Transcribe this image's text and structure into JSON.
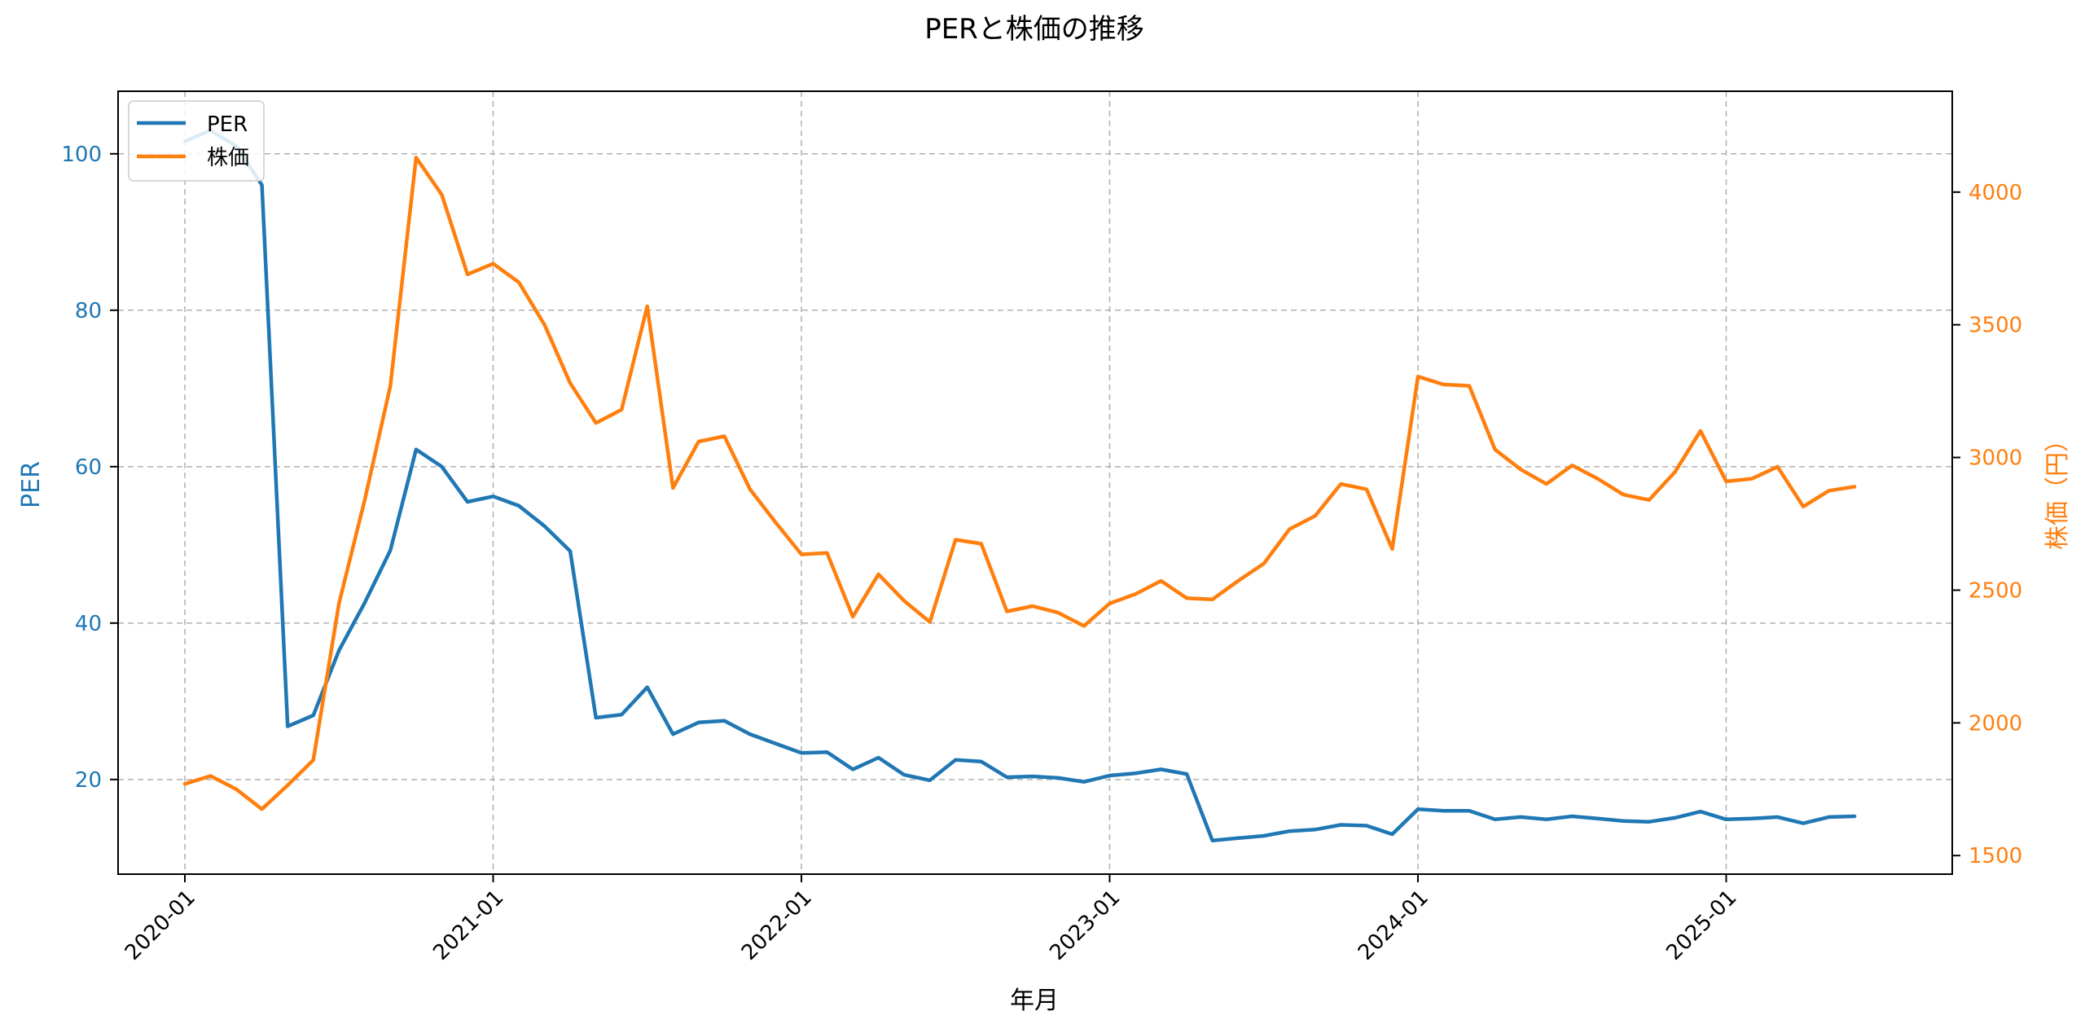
{
  "chart_data": {
    "type": "line",
    "title": "PERと株価の推移",
    "xlabel": "年月",
    "ylabel_left": "PER",
    "ylabel_right": "株価（円）",
    "x_ticks": [
      "2020-01",
      "2021-01",
      "2022-01",
      "2023-01",
      "2024-01",
      "2025-01"
    ],
    "x_range": [
      -2.6,
      68.8
    ],
    "y_left_range": [
      7.9,
      108.0
    ],
    "y_left_ticks": [
      20,
      40,
      60,
      80,
      100
    ],
    "y_right_range": [
      1430,
      4380
    ],
    "y_right_ticks": [
      1500,
      2000,
      2500,
      3000,
      3500,
      4000
    ],
    "grid": true,
    "legend_position": "upper-left",
    "colors": {
      "per": "#1f77b4",
      "price": "#ff7f0e"
    },
    "series": [
      {
        "name": "PER",
        "axis": "left",
        "color": "#1f77b4",
        "values": [
          101.6,
          103.0,
          101.0,
          96.0,
          26.8,
          28.2,
          36.5,
          42.6,
          49.3,
          62.2,
          60.0,
          55.5,
          56.2,
          55.0,
          52.4,
          49.2,
          27.9,
          28.3,
          31.8,
          25.8,
          27.3,
          27.5,
          25.8,
          24.6,
          23.4,
          23.5,
          21.3,
          22.8,
          20.6,
          19.9,
          22.5,
          22.3,
          20.3,
          20.4,
          20.2,
          19.7,
          20.5,
          20.8,
          21.3,
          20.7,
          12.2,
          12.5,
          12.8,
          13.4,
          13.6,
          14.2,
          14.1,
          13.0,
          16.2,
          16.0,
          16.0,
          14.9,
          15.2,
          14.9,
          15.3,
          15.0,
          14.7,
          14.6,
          15.1,
          15.9,
          14.9,
          15.0,
          15.2,
          14.4,
          15.2,
          15.3
        ]
      },
      {
        "name": "株価",
        "axis": "right",
        "color": "#ff7f0e",
        "values": [
          1770,
          1800,
          1750,
          1675,
          1765,
          1860,
          2450,
          2840,
          3270,
          4130,
          3990,
          3690,
          3730,
          3660,
          3500,
          3280,
          3130,
          3180,
          3570,
          2885,
          3060,
          3080,
          2880,
          2755,
          2635,
          2640,
          2400,
          2560,
          2460,
          2380,
          2690,
          2675,
          2420,
          2440,
          2415,
          2365,
          2450,
          2485,
          2535,
          2470,
          2465,
          2535,
          2600,
          2730,
          2780,
          2900,
          2880,
          2655,
          3305,
          3275,
          3270,
          3030,
          2955,
          2900,
          2970,
          2920,
          2860,
          2840,
          2945,
          3100,
          2910,
          2920,
          2965,
          2815,
          2875,
          2890
        ]
      }
    ]
  }
}
